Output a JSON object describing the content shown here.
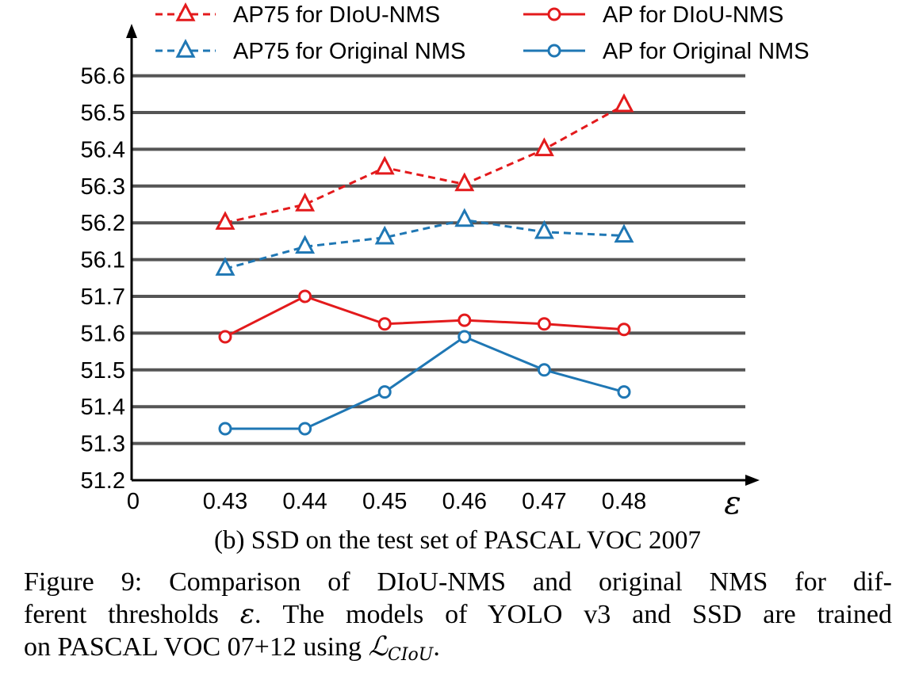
{
  "chart_data": {
    "type": "line",
    "x": [
      0.43,
      0.44,
      0.45,
      0.46,
      0.47,
      0.48
    ],
    "x_tick_labels": [
      "0.43",
      "0.44",
      "0.45",
      "0.46",
      "0.47",
      "0.48"
    ],
    "origin_label": "0",
    "xlabel": "ε",
    "y_tick_labels": [
      "51.2",
      "51.3",
      "51.4",
      "51.5",
      "51.6",
      "51.7",
      "56.1",
      "56.2",
      "56.3",
      "56.4",
      "56.5",
      "56.6"
    ],
    "y_axis_note": "broken axis: 51.2–51.7 then 56.1–56.6",
    "grid": "horizontal",
    "legend_position": "top",
    "series": [
      {
        "name": "AP75 for DIoU-NMS",
        "color": "#e31a1c",
        "line_style": "dashed",
        "marker": "triangle",
        "values": [
          56.2,
          56.25,
          56.35,
          56.305,
          56.4,
          56.52
        ]
      },
      {
        "name": "AP75 for Original NMS",
        "color": "#1f77b4",
        "line_style": "dashed",
        "marker": "triangle",
        "values": [
          56.075,
          56.135,
          56.16,
          56.208,
          56.175,
          56.165
        ]
      },
      {
        "name": "AP for DIoU-NMS",
        "color": "#e31a1c",
        "line_style": "solid",
        "marker": "circle",
        "values": [
          51.59,
          51.7,
          51.625,
          51.635,
          51.625,
          51.61
        ]
      },
      {
        "name": "AP for Original NMS",
        "color": "#1f77b4",
        "line_style": "solid",
        "marker": "circle",
        "values": [
          51.34,
          51.34,
          51.44,
          51.59,
          51.5,
          51.44
        ]
      }
    ]
  },
  "subcaption": "(b) SSD on the test set of PASCAL VOC 2007",
  "caption": {
    "line1": "Figure 9: Comparison of DIoU-NMS and original NMS for dif-",
    "line2_before": "ferent thresholds ",
    "line2_symbol": "ε",
    "line2_after": ". The models of YOLO v3 and SSD are trained",
    "line3_before": "on PASCAL VOC 07+12 using ",
    "line3_symbol": "ℒ",
    "line3_subscript": "CIoU",
    "line3_after": "."
  }
}
